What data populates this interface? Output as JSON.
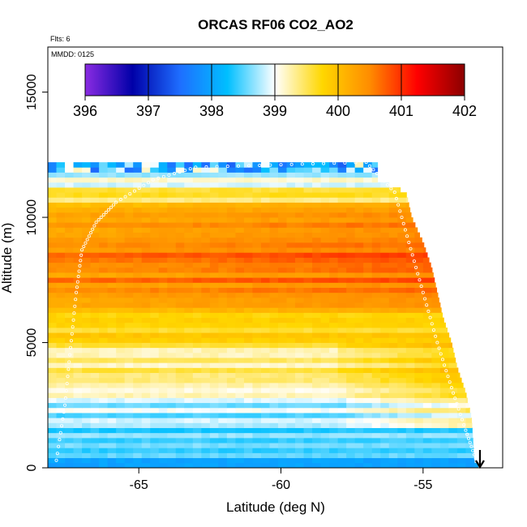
{
  "chart_data": {
    "type": "heatmap",
    "title": "ORCAS RF06 CO2_AO2",
    "xlabel": "Latitude (deg N)",
    "ylabel": "Altitude (m)",
    "xlim": [
      -68.2,
      -52.2
    ],
    "ylim": [
      0,
      16800
    ],
    "x_ticks": [
      -65,
      -60,
      -55
    ],
    "x_tick_labels": [
      "-65",
      "-60",
      "-55"
    ],
    "y_ticks": [
      0,
      5000,
      10000,
      15000
    ],
    "y_tick_labels": [
      "0",
      "5000",
      "10000",
      "15000"
    ],
    "annotations": {
      "flights": "Flts: 6",
      "date": "MMDD: 0125"
    },
    "colorbar": {
      "min": 396,
      "max": 402,
      "ticks": [
        396,
        397,
        398,
        399,
        400,
        401,
        402
      ],
      "tick_labels": [
        "396",
        "397",
        "398",
        "399",
        "400",
        "401",
        "402"
      ],
      "colors": [
        "#8A2BE2",
        "#0000A8",
        "#1E6EFF",
        "#00BFFF",
        "#FFFFFF",
        "#FFD700",
        "#FF8C00",
        "#FF0000",
        "#8B0000"
      ]
    },
    "data_boundary": {
      "altitudes_m": [
        0,
        300,
        2000,
        3000,
        4000,
        5000,
        6000,
        7000,
        8000,
        9000,
        10000,
        11000,
        11500,
        12200
      ],
      "max_latitude": [
        -53.0,
        -53.2,
        -53.3,
        -53.5,
        -53.8,
        -54.0,
        -54.3,
        -54.5,
        -54.7,
        -55.0,
        -55.4,
        -55.6,
        -56.6,
        -56.6
      ]
    },
    "altitude_profile": [
      {
        "alt_m": 200,
        "co2": 398.2
      },
      {
        "alt_m": 800,
        "co2": 398.4
      },
      {
        "alt_m": 1500,
        "co2": 398.6
      },
      {
        "alt_m": 2500,
        "co2": 398.9
      },
      {
        "alt_m": 3500,
        "co2": 399.3
      },
      {
        "alt_m": 4500,
        "co2": 399.5
      },
      {
        "alt_m": 5500,
        "co2": 399.8
      },
      {
        "alt_m": 6500,
        "co2": 400.2
      },
      {
        "alt_m": 7500,
        "co2": 400.4
      },
      {
        "alt_m": 8500,
        "co2": 400.6
      },
      {
        "alt_m": 9500,
        "co2": 400.5
      },
      {
        "alt_m": 10500,
        "co2": 399.8
      },
      {
        "alt_m": 11500,
        "co2": 399.0
      },
      {
        "alt_m": 12000,
        "co2": 398.0
      }
    ],
    "flight_track": {
      "points": [
        {
          "lat": -67.9,
          "alt": 300
        },
        {
          "lat": -67.6,
          "alt": 2500
        },
        {
          "lat": -67.4,
          "alt": 4800
        },
        {
          "lat": -67.2,
          "alt": 7000
        },
        {
          "lat": -67.0,
          "alt": 8700
        },
        {
          "lat": -66.5,
          "alt": 9800
        },
        {
          "lat": -65.8,
          "alt": 10600
        },
        {
          "lat": -64.5,
          "alt": 11500
        },
        {
          "lat": -63.0,
          "alt": 12000
        },
        {
          "lat": -60.0,
          "alt": 12100
        },
        {
          "lat": -57.0,
          "alt": 12200
        },
        {
          "lat": -56.0,
          "alt": 11000
        },
        {
          "lat": -55.5,
          "alt": 9000
        },
        {
          "lat": -55.0,
          "alt": 7000
        },
        {
          "lat": -54.5,
          "alt": 5000
        },
        {
          "lat": -54.0,
          "alt": 3200
        },
        {
          "lat": -53.5,
          "alt": 1500
        },
        {
          "lat": -53.1,
          "alt": 200
        }
      ]
    },
    "arrow_latitude": -53.0
  }
}
